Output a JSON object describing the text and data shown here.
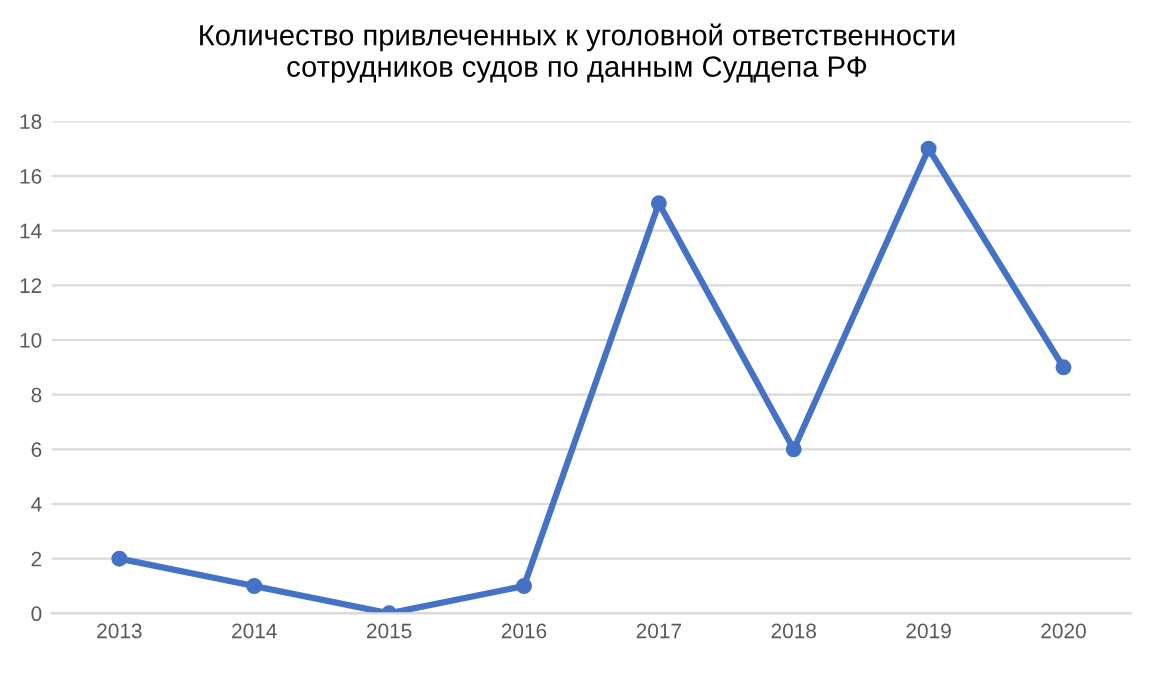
{
  "chart_data": {
    "type": "line",
    "title": "Количество привлеченных к уголовной ответственности\nсотрудников судов по данным Суддепа РФ",
    "categories": [
      "2013",
      "2014",
      "2015",
      "2016",
      "2017",
      "2018",
      "2019",
      "2020"
    ],
    "series": [
      {
        "color": "#4472c4",
        "values": [
          2,
          1,
          0,
          1,
          15,
          6,
          17,
          9
        ]
      }
    ],
    "ylim": [
      0,
      18
    ],
    "yticks": [
      0,
      2,
      4,
      6,
      8,
      10,
      12,
      14,
      16,
      18
    ],
    "grid": "y",
    "marker": "circle",
    "line_style": "solid"
  }
}
